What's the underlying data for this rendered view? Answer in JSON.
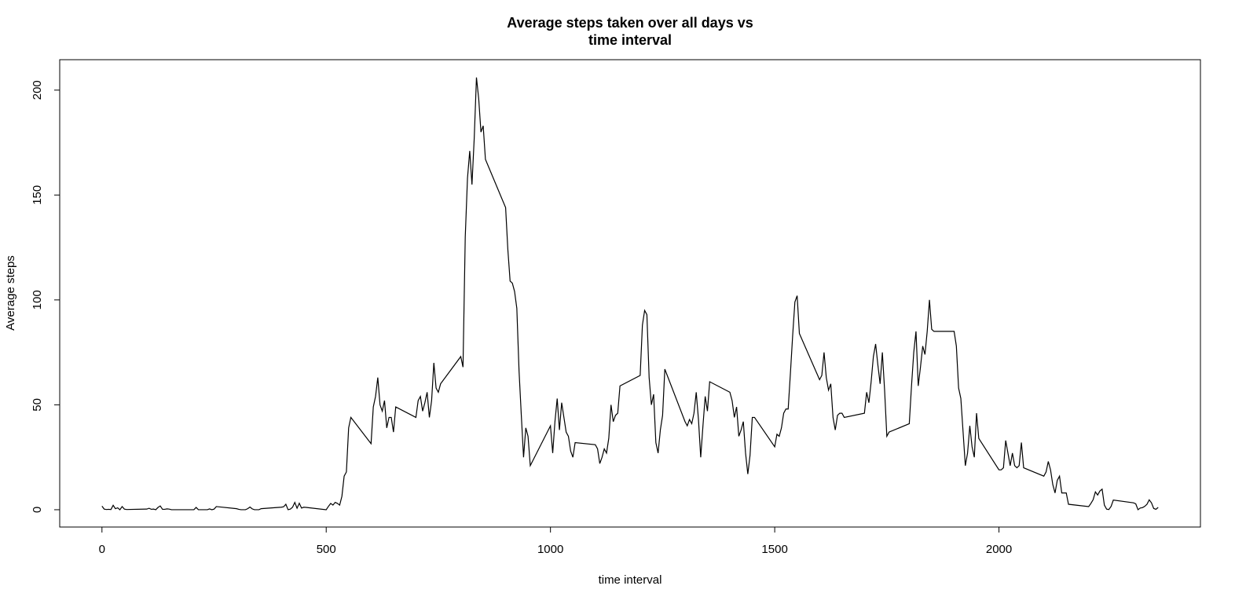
{
  "chart_data": {
    "type": "line",
    "title": [
      "Average steps taken over all days vs",
      "time interval"
    ],
    "xlabel": "time interval",
    "ylabel": "Average steps",
    "color": "#000000",
    "x": [
      0,
      5,
      10,
      15,
      20,
      25,
      30,
      35,
      40,
      45,
      50,
      55,
      100,
      105,
      110,
      115,
      120,
      125,
      130,
      135,
      140,
      145,
      150,
      155,
      200,
      205,
      210,
      215,
      220,
      225,
      230,
      235,
      240,
      245,
      250,
      255,
      300,
      305,
      310,
      315,
      320,
      325,
      330,
      335,
      340,
      345,
      350,
      355,
      400,
      405,
      410,
      415,
      420,
      425,
      430,
      435,
      440,
      445,
      450,
      455,
      500,
      505,
      510,
      515,
      520,
      525,
      530,
      535,
      540,
      545,
      550,
      555,
      600,
      605,
      610,
      615,
      620,
      625,
      630,
      635,
      640,
      645,
      650,
      655,
      700,
      705,
      710,
      715,
      720,
      725,
      730,
      735,
      740,
      745,
      750,
      755,
      800,
      805,
      810,
      815,
      820,
      825,
      830,
      835,
      840,
      845,
      850,
      855,
      900,
      905,
      910,
      915,
      920,
      925,
      930,
      935,
      940,
      945,
      950,
      955,
      1000,
      1005,
      1010,
      1015,
      1020,
      1025,
      1030,
      1035,
      1040,
      1045,
      1050,
      1055,
      1100,
      1105,
      1110,
      1115,
      1120,
      1125,
      1130,
      1135,
      1140,
      1145,
      1150,
      1155,
      1200,
      1205,
      1210,
      1215,
      1220,
      1225,
      1230,
      1235,
      1240,
      1245,
      1250,
      1255,
      1300,
      1305,
      1310,
      1315,
      1320,
      1325,
      1330,
      1335,
      1340,
      1345,
      1350,
      1355,
      1400,
      1405,
      1410,
      1415,
      1420,
      1425,
      1430,
      1435,
      1440,
      1445,
      1450,
      1455,
      1500,
      1505,
      1510,
      1515,
      1520,
      1525,
      1530,
      1535,
      1540,
      1545,
      1550,
      1555,
      1600,
      1605,
      1610,
      1615,
      1620,
      1625,
      1630,
      1635,
      1640,
      1645,
      1650,
      1655,
      1700,
      1705,
      1710,
      1715,
      1720,
      1725,
      1730,
      1735,
      1740,
      1745,
      1750,
      1755,
      1800,
      1805,
      1810,
      1815,
      1820,
      1825,
      1830,
      1835,
      1840,
      1845,
      1850,
      1855,
      1900,
      1905,
      1910,
      1915,
      1920,
      1925,
      1930,
      1935,
      1940,
      1945,
      1950,
      1955,
      2000,
      2005,
      2010,
      2015,
      2020,
      2025,
      2030,
      2035,
      2040,
      2045,
      2050,
      2055,
      2100,
      2105,
      2110,
      2115,
      2120,
      2125,
      2130,
      2135,
      2140,
      2145,
      2150,
      2155,
      2200,
      2205,
      2210,
      2215,
      2220,
      2225,
      2230,
      2235,
      2240,
      2245,
      2250,
      2255,
      2300,
      2305,
      2310,
      2315,
      2320,
      2325,
      2330,
      2335,
      2340,
      2345,
      2350,
      2355
    ],
    "values": [
      1.7,
      0.3,
      0.1,
      0.2,
      0.1,
      2.1,
      0.5,
      0.9,
      0,
      1.5,
      0.3,
      0.1,
      0.3,
      0.7,
      0.2,
      0.3,
      0,
      1.1,
      1.8,
      0.2,
      0.2,
      0.4,
      0.3,
      0,
      0,
      0,
      1.1,
      0,
      0,
      0,
      0,
      0,
      0.4,
      0,
      0.3,
      1.5,
      0.5,
      0.2,
      0,
      0,
      0,
      0.5,
      1.3,
      0.4,
      0,
      0,
      0,
      0.5,
      1.2,
      1.4,
      2.6,
      0,
      0.3,
      1.2,
      3.5,
      0.7,
      3.1,
      0.8,
      1.2,
      1.1,
      0,
      1.6,
      3,
      2.2,
      3.5,
      3,
      2.2,
      6.4,
      16,
      18,
      39,
      44,
      31.5,
      49,
      54,
      63,
      50,
      47,
      52,
      39,
      44,
      44,
      37,
      49,
      44,
      52,
      54,
      47,
      51,
      56,
      44,
      52,
      70,
      58,
      56,
      60,
      73,
      68,
      130,
      158,
      171,
      155,
      177,
      206,
      196,
      180,
      183,
      167,
      144,
      124,
      109,
      108,
      104,
      96,
      66,
      45,
      25,
      39,
      35,
      21,
      40,
      27,
      42,
      53,
      38,
      51,
      44,
      37,
      35,
      28,
      25,
      32,
      31,
      29,
      22,
      25,
      29,
      27,
      34,
      50,
      42,
      45,
      46,
      59,
      64,
      88,
      95,
      93,
      63,
      50,
      55,
      32,
      27,
      38,
      45,
      67,
      42,
      40,
      43,
      41,
      46,
      56,
      43,
      25,
      40,
      54,
      47,
      61,
      56,
      52,
      44,
      49,
      35,
      38,
      42,
      27,
      17,
      26,
      44,
      44,
      30,
      36,
      35,
      39,
      46,
      48,
      48,
      65,
      83,
      99,
      102,
      84,
      62,
      64,
      75,
      63,
      57,
      60,
      44,
      38,
      45,
      46,
      46,
      44,
      46,
      56,
      51,
      61,
      73,
      79,
      69,
      60,
      75,
      57,
      35,
      37,
      41,
      59,
      75,
      85,
      59,
      68,
      78,
      74,
      85,
      100,
      86,
      85,
      85,
      78,
      58,
      53,
      37,
      21,
      27,
      40,
      30,
      25,
      46,
      34,
      19,
      19,
      20,
      33,
      27,
      21,
      27,
      21,
      20,
      21,
      32,
      20,
      16,
      18,
      23,
      19,
      12,
      8,
      14,
      16,
      8,
      8,
      8,
      2.6,
      1.5,
      3,
      4.8,
      8.5,
      7,
      8.9,
      9.8,
      2.2,
      0.3,
      0.1,
      1.6,
      4.6,
      3.3,
      2.8,
      0,
      0.8,
      1,
      1.6,
      2.6,
      4.7,
      3.3,
      0.6,
      0.2,
      1.1
    ],
    "xlim": [
      -94.2,
      2449.2
    ],
    "ylim": [
      -8.25,
      214.5
    ],
    "xticks": [
      0,
      500,
      1000,
      1500,
      2000
    ],
    "yticks": [
      0,
      50,
      100,
      150,
      200
    ]
  }
}
